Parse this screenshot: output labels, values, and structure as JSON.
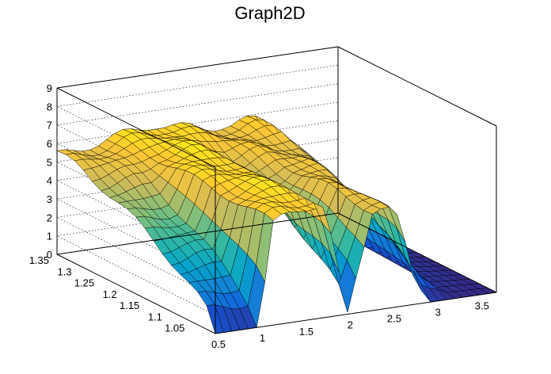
{
  "chart_data": {
    "type": "surface3d",
    "title": "Graph2D",
    "xlabel": "",
    "ylabel": "",
    "zlabel": "",
    "xlim": [
      0.5,
      3.7
    ],
    "ylim": [
      1.0,
      1.35
    ],
    "zlim": [
      0,
      9
    ],
    "x_ticks": [
      "0.5",
      "1",
      "1.5",
      "2",
      "2.5",
      "3",
      "3.5"
    ],
    "y_ticks": [
      "1.05",
      "1.1",
      "1.15",
      "1.2",
      "1.25",
      "1.3",
      "1.35"
    ],
    "z_ticks": [
      "0",
      "1",
      "2",
      "3",
      "4",
      "5",
      "6",
      "7",
      "8",
      "9"
    ],
    "grid": true,
    "palette": [
      "#352a87",
      "#0f5cdd",
      "#1481d6",
      "#06a4ca",
      "#2eb7a4",
      "#87bf77",
      "#d1bb59",
      "#fec832",
      "#f9fb0e"
    ],
    "surface_profile": {
      "x": [
        0.5,
        0.75,
        1.0,
        1.15,
        1.3,
        1.6,
        1.75,
        2.0,
        2.3,
        2.5,
        2.6,
        2.75,
        2.95,
        3.2,
        3.7
      ],
      "back_row_y": 1.3,
      "back_row_z": [
        5.4,
        5.5,
        5.7,
        5.9,
        6.1,
        6.2,
        6.0,
        5.9,
        5.6,
        5.5,
        5.7,
        5.9,
        4.8,
        0.5,
        0.0
      ],
      "front_row_y": 1.0,
      "front_row_z": [
        0.0,
        0.0,
        0.0,
        5.5,
        5.9,
        6.1,
        6.0,
        0.0,
        5.6,
        5.4,
        4.6,
        1.5,
        0.0,
        0.0,
        0.0
      ]
    }
  }
}
